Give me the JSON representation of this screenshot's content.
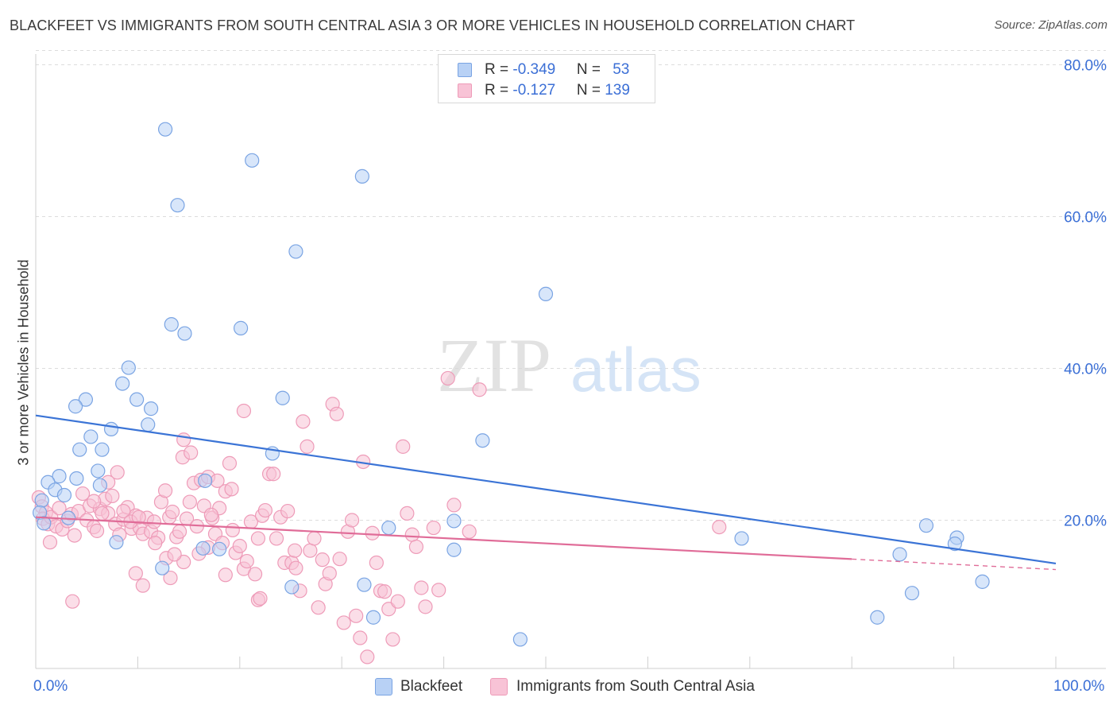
{
  "title": "BLACKFEET VS IMMIGRANTS FROM SOUTH CENTRAL ASIA 3 OR MORE VEHICLES IN HOUSEHOLD CORRELATION CHART",
  "source": "Source: ZipAtlas.com",
  "watermark": {
    "zip": "ZIP",
    "atlas": "atlas"
  },
  "legend": {
    "rows": [
      {
        "r_label": "R = ",
        "r_value": "-0.349",
        "n_label": "N = ",
        "n_value": "53"
      },
      {
        "r_label": "R = ",
        "r_value": "-0.127",
        "n_label": "N = ",
        "n_value": "139"
      }
    ]
  },
  "colors": {
    "blue_fill": "#b8d1f5",
    "blue_stroke": "#7aa4e3",
    "blue_line": "#3b74d6",
    "pink_fill": "#f8c3d6",
    "pink_stroke": "#ee9bb8",
    "pink_line": "#e06c98",
    "axis_text": "#3b6fd6",
    "grid": "#dcdcdc"
  },
  "chart_data": {
    "type": "scatter",
    "xlabel": "",
    "ylabel": "3 or more Vehicles in Household",
    "xlim": [
      0,
      100
    ],
    "ylim": [
      0,
      85
    ],
    "x_tick_labels": [
      "0.0%",
      "100.0%"
    ],
    "y_ticks": [
      20,
      40,
      60,
      80
    ],
    "y_tick_labels": [
      "20.0%",
      "40.0%",
      "60.0%",
      "80.0%"
    ],
    "grid": true,
    "legend_position": "top-center",
    "series": [
      {
        "name": "Blackfeet",
        "color": "#7aa4e3",
        "r": -0.349,
        "n": 53,
        "trend": {
          "x": [
            0,
            100
          ],
          "y": [
            33.8,
            14.3
          ],
          "solid_to": 100
        },
        "points": [
          [
            12.7,
            71.5
          ],
          [
            21.2,
            67.4
          ],
          [
            13.9,
            61.5
          ],
          [
            32.0,
            65.3
          ],
          [
            25.5,
            55.4
          ],
          [
            50.0,
            49.8
          ],
          [
            13.3,
            45.8
          ],
          [
            14.6,
            44.6
          ],
          [
            20.1,
            45.3
          ],
          [
            9.1,
            40.1
          ],
          [
            8.5,
            38.0
          ],
          [
            4.9,
            35.9
          ],
          [
            9.9,
            35.9
          ],
          [
            11.3,
            34.7
          ],
          [
            24.2,
            36.1
          ],
          [
            11.0,
            32.6
          ],
          [
            3.9,
            35.0
          ],
          [
            7.4,
            32.0
          ],
          [
            5.4,
            31.0
          ],
          [
            4.3,
            29.3
          ],
          [
            6.5,
            29.3
          ],
          [
            23.2,
            28.8
          ],
          [
            43.8,
            30.5
          ],
          [
            6.1,
            26.5
          ],
          [
            2.3,
            25.8
          ],
          [
            4.0,
            25.5
          ],
          [
            1.2,
            25.0
          ],
          [
            6.3,
            24.6
          ],
          [
            16.6,
            25.2
          ],
          [
            1.9,
            24.0
          ],
          [
            2.8,
            23.3
          ],
          [
            0.6,
            22.6
          ],
          [
            0.4,
            21.0
          ],
          [
            3.2,
            20.3
          ],
          [
            0.8,
            19.6
          ],
          [
            34.6,
            19.0
          ],
          [
            41.0,
            19.9
          ],
          [
            87.3,
            19.3
          ],
          [
            69.2,
            17.6
          ],
          [
            90.3,
            17.7
          ],
          [
            90.1,
            16.9
          ],
          [
            7.9,
            17.1
          ],
          [
            16.4,
            16.3
          ],
          [
            18.0,
            16.2
          ],
          [
            41.0,
            16.1
          ],
          [
            84.7,
            15.5
          ],
          [
            12.4,
            13.7
          ],
          [
            25.1,
            11.2
          ],
          [
            32.2,
            11.5
          ],
          [
            85.9,
            10.4
          ],
          [
            92.8,
            11.9
          ],
          [
            33.1,
            7.2
          ],
          [
            82.5,
            7.2
          ],
          [
            47.5,
            4.3
          ]
        ]
      },
      {
        "name": "Immigrants from South Central Asia",
        "color": "#ee9bb8",
        "r": -0.127,
        "n": 139,
        "trend": {
          "x": [
            0,
            100
          ],
          "y": [
            20.4,
            13.5
          ],
          "solid_to": 80
        },
        "points": [
          [
            0.3,
            23.0
          ],
          [
            0.6,
            21.8
          ],
          [
            1.0,
            21.0
          ],
          [
            0.7,
            20.2
          ],
          [
            1.2,
            19.5
          ],
          [
            1.5,
            20.4
          ],
          [
            2.0,
            19.2
          ],
          [
            2.3,
            21.6
          ],
          [
            2.6,
            18.8
          ],
          [
            3.1,
            19.9
          ],
          [
            3.5,
            20.8
          ],
          [
            3.8,
            18.0
          ],
          [
            4.2,
            21.2
          ],
          [
            4.6,
            23.5
          ],
          [
            5.0,
            20.0
          ],
          [
            5.3,
            21.9
          ],
          [
            5.7,
            19.1
          ],
          [
            6.0,
            18.6
          ],
          [
            6.3,
            21.5
          ],
          [
            6.8,
            22.8
          ],
          [
            7.1,
            20.9
          ],
          [
            7.5,
            23.2
          ],
          [
            7.8,
            19.5
          ],
          [
            8.0,
            26.3
          ],
          [
            8.2,
            18.1
          ],
          [
            8.6,
            20.1
          ],
          [
            9.0,
            21.7
          ],
          [
            9.4,
            18.9
          ],
          [
            9.8,
            20.6
          ],
          [
            10.2,
            19.0
          ],
          [
            10.5,
            18.2
          ],
          [
            10.9,
            20.3
          ],
          [
            11.3,
            18.5
          ],
          [
            11.6,
            19.8
          ],
          [
            12.0,
            17.7
          ],
          [
            12.3,
            22.4
          ],
          [
            12.7,
            23.9
          ],
          [
            13.1,
            20.4
          ],
          [
            13.4,
            21.1
          ],
          [
            13.8,
            17.8
          ],
          [
            14.1,
            18.5
          ],
          [
            14.4,
            28.3
          ],
          [
            14.8,
            20.2
          ],
          [
            15.1,
            22.4
          ],
          [
            15.5,
            24.9
          ],
          [
            15.8,
            19.2
          ],
          [
            16.2,
            25.3
          ],
          [
            16.5,
            21.9
          ],
          [
            16.9,
            16.4
          ],
          [
            17.3,
            20.3
          ],
          [
            17.6,
            18.2
          ],
          [
            18.0,
            21.6
          ],
          [
            18.3,
            17.0
          ],
          [
            18.6,
            23.8
          ],
          [
            19.0,
            27.5
          ],
          [
            19.3,
            18.7
          ],
          [
            19.6,
            15.7
          ],
          [
            20.0,
            16.6
          ],
          [
            20.4,
            13.6
          ],
          [
            20.7,
            14.6
          ],
          [
            21.1,
            19.8
          ],
          [
            21.5,
            12.9
          ],
          [
            21.8,
            17.6
          ],
          [
            22.2,
            20.6
          ],
          [
            22.5,
            21.3
          ],
          [
            22.9,
            26.1
          ],
          [
            23.3,
            26.1
          ],
          [
            23.6,
            17.6
          ],
          [
            24.0,
            20.4
          ],
          [
            24.4,
            14.4
          ],
          [
            24.7,
            21.2
          ],
          [
            25.1,
            14.4
          ],
          [
            25.5,
            13.7
          ],
          [
            25.9,
            10.7
          ],
          [
            26.2,
            33.0
          ],
          [
            26.6,
            29.7
          ],
          [
            26.9,
            16.0
          ],
          [
            27.3,
            17.6
          ],
          [
            27.7,
            8.5
          ],
          [
            28.1,
            14.8
          ],
          [
            28.4,
            11.6
          ],
          [
            28.8,
            13.0
          ],
          [
            29.1,
            35.3
          ],
          [
            29.5,
            34.0
          ],
          [
            29.8,
            14.9
          ],
          [
            30.2,
            6.5
          ],
          [
            30.6,
            18.5
          ],
          [
            31.0,
            20.0
          ],
          [
            31.4,
            7.4
          ],
          [
            31.8,
            4.5
          ],
          [
            32.1,
            27.7
          ],
          [
            32.5,
            2.0
          ],
          [
            33.0,
            18.3
          ],
          [
            33.4,
            14.4
          ],
          [
            33.8,
            10.7
          ],
          [
            34.2,
            10.6
          ],
          [
            34.6,
            8.3
          ],
          [
            35.0,
            4.3
          ],
          [
            35.5,
            9.3
          ],
          [
            36.0,
            29.7
          ],
          [
            36.4,
            20.9
          ],
          [
            36.9,
            18.1
          ],
          [
            37.3,
            16.5
          ],
          [
            37.8,
            11.1
          ],
          [
            38.2,
            8.6
          ],
          [
            39.0,
            19.0
          ],
          [
            39.5,
            10.8
          ],
          [
            40.4,
            38.7
          ],
          [
            41.0,
            22.0
          ],
          [
            42.5,
            18.5
          ],
          [
            43.5,
            37.2
          ],
          [
            17.2,
            20.7
          ],
          [
            12.8,
            15.0
          ],
          [
            13.2,
            12.4
          ],
          [
            14.5,
            14.5
          ],
          [
            16.9,
            25.7
          ],
          [
            17.8,
            25.2
          ],
          [
            19.2,
            24.1
          ],
          [
            20.4,
            34.4
          ],
          [
            15.2,
            28.9
          ],
          [
            14.5,
            30.6
          ],
          [
            21.8,
            9.5
          ],
          [
            22.0,
            9.7
          ],
          [
            25.4,
            16.0
          ],
          [
            9.8,
            13.0
          ],
          [
            10.5,
            11.4
          ],
          [
            11.7,
            17.0
          ],
          [
            13.6,
            15.5
          ],
          [
            16.0,
            15.6
          ],
          [
            18.6,
            12.8
          ],
          [
            1.4,
            17.1
          ],
          [
            3.6,
            9.3
          ],
          [
            5.7,
            22.5
          ],
          [
            6.5,
            20.9
          ],
          [
            7.1,
            25.0
          ],
          [
            8.6,
            21.2
          ],
          [
            9.3,
            19.8
          ],
          [
            10.1,
            20.4
          ],
          [
            67.0,
            19.1
          ]
        ]
      }
    ]
  }
}
